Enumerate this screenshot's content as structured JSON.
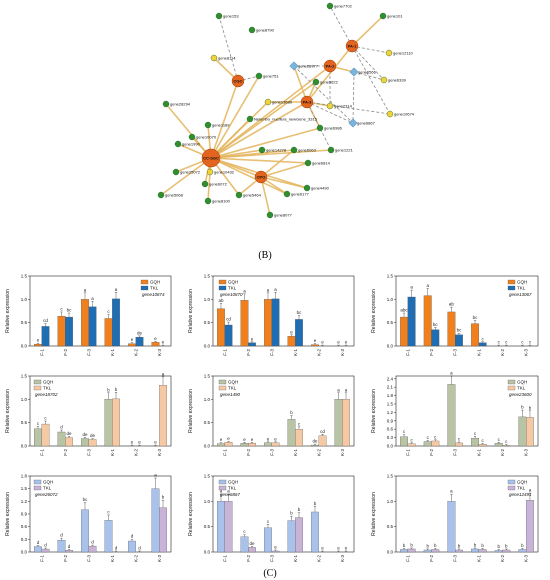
{
  "figure": {
    "panel_b_label": "(B)",
    "panel_c_label": "(C)"
  },
  "colors": {
    "edge_gold": "#e3b45a",
    "edge_dash": "#8a8a8a",
    "hub_fill": "#e2641f",
    "gene_green": "#2f8f2f",
    "gene_yellow": "#f0d23a",
    "gene_blue": "#78b4dc",
    "row1_gqh": "#f07f1e",
    "row1_tkl": "#1f6db3",
    "row2_gqh": "#b8c4a4",
    "row2_tkl": "#f6c9a5",
    "row3_gqh": "#a9c2ec",
    "row3_tkl": "#c9b4d8"
  },
  "network": {
    "hubs": [
      "PA-1",
      "PA-2",
      "PA-3",
      "CGC",
      "CC-SGC",
      "CPO"
    ],
    "genes": [
      "gene7702",
      "gene153",
      "gene101",
      "gene8790",
      "gene12110",
      "gene8114",
      "gene28977",
      "gene6339",
      "gene751",
      "gene9622",
      "gene6566",
      "gene13689",
      "gene28294",
      "gene2314",
      "gene10674",
      "gene1189",
      "Nelumbo_nucifera_newGene_3315",
      "gene6867",
      "gene10070",
      "gene6986",
      "gene1990",
      "gene6063",
      "gene1221",
      "gene14278",
      "gene25072",
      "gene6814",
      "gene10432",
      "gene6072",
      "gene5464",
      "gene4490",
      "gene5068",
      "gene8100",
      "gene6177",
      "gene8077"
    ]
  },
  "chart_data": [
    {
      "type": "bar",
      "gene": "gene10874",
      "ylabel": "Relative expression",
      "ylim": [
        0,
        1.5
      ],
      "yticks": [
        "0.0",
        "0.5",
        "1.0",
        "1.5"
      ],
      "categories": [
        "F-1",
        "F-2",
        "F-3",
        "K-1",
        "K-2",
        "K-3"
      ],
      "legend": [
        "GQH",
        "TKL"
      ],
      "series": [
        {
          "name": "GQH",
          "values": [
            0.04,
            0.64,
            1.0,
            0.59,
            0.05,
            0.08
          ],
          "sig": [
            "e",
            "c",
            "a",
            "c",
            "e",
            "e"
          ]
        },
        {
          "name": "TKL",
          "values": [
            0.42,
            0.62,
            0.84,
            1.01,
            0.19,
            0.0
          ],
          "sig": [
            "cd",
            "bc",
            "a",
            "a",
            "de",
            "e"
          ]
        }
      ]
    },
    {
      "type": "bar",
      "gene": "gene10870",
      "ylabel": "Relative expression",
      "ylim": [
        0,
        1.5
      ],
      "yticks": [
        "0.0",
        "0.5",
        "1.0",
        "1.5"
      ],
      "categories": [
        "F-1",
        "F-2",
        "F-3",
        "K-1",
        "K-2",
        "K-3"
      ],
      "legend": [
        "GQH",
        "TKL"
      ],
      "series": [
        {
          "name": "GQH",
          "values": [
            0.8,
            0.98,
            1.0,
            0.21,
            0.03,
            0.0
          ],
          "sig": [
            "ab",
            "a",
            "a",
            "e",
            "e",
            "e"
          ]
        },
        {
          "name": "TKL",
          "values": [
            0.45,
            0.07,
            1.01,
            0.57,
            0.0,
            0.0
          ],
          "sig": [
            "cd",
            "e",
            "a",
            "bc",
            "e",
            "e"
          ]
        }
      ]
    },
    {
      "type": "bar",
      "gene": "gene13067",
      "ylabel": "Relative expression",
      "ylim": [
        0,
        1.5
      ],
      "yticks": [
        "0.0",
        "0.5",
        "1.0",
        "1.5"
      ],
      "categories": [
        "F-1",
        "F-2",
        "F-3",
        "K-1",
        "K-2",
        "K-3"
      ],
      "legend": [
        "GQH",
        "TKL"
      ],
      "series": [
        {
          "name": "GQH",
          "values": [
            0.62,
            1.08,
            0.73,
            0.48,
            0.0,
            0.0
          ],
          "sig": [
            "abc",
            "a",
            "ab",
            "bc",
            "c",
            "c"
          ]
        },
        {
          "name": "TKL",
          "values": [
            1.05,
            0.35,
            0.24,
            0.07,
            0.0,
            0.0
          ],
          "sig": [
            "a",
            "bc",
            "bc",
            "c",
            "c",
            "c"
          ]
        }
      ]
    },
    {
      "type": "bar",
      "gene": "gene18702",
      "ylabel": "Relative expression",
      "ylim": [
        0,
        1.5
      ],
      "yticks": [
        "0.0",
        "0.5",
        "1.0",
        "1.5"
      ],
      "categories": [
        "F-1",
        "F-2",
        "F-3",
        "K-1",
        "K-2",
        "K-3"
      ],
      "legend": [
        "GQH",
        "TKL"
      ],
      "series": [
        {
          "name": "GQH",
          "values": [
            0.37,
            0.3,
            0.16,
            1.0,
            0.0,
            0.0
          ],
          "sig": [
            "c",
            "d",
            "de",
            "b",
            "e",
            "e"
          ]
        },
        {
          "name": "TKL",
          "values": [
            0.47,
            0.18,
            0.14,
            1.01,
            0.0,
            1.3
          ],
          "sig": [
            "c",
            "de",
            "de",
            "b",
            "e",
            "a"
          ]
        }
      ]
    },
    {
      "type": "bar",
      "gene": "gene1490",
      "ylabel": "Relative expression",
      "ylim": [
        0,
        1.5
      ],
      "yticks": [
        "0.0",
        "0.5",
        "1.0",
        "1.5"
      ],
      "categories": [
        "F-1",
        "F-2",
        "F-3",
        "K-1",
        "K-2",
        "K-3"
      ],
      "legend": [
        "GQH",
        "TKL"
      ],
      "series": [
        {
          "name": "GQH",
          "values": [
            0.05,
            0.06,
            0.07,
            0.57,
            0.02,
            1.0
          ],
          "sig": [
            "e",
            "e",
            "e",
            "b",
            "de",
            "a"
          ]
        },
        {
          "name": "TKL",
          "values": [
            0.08,
            0.06,
            0.07,
            0.36,
            0.22,
            1.0
          ],
          "sig": [
            "e",
            "e",
            "e",
            "c",
            "cd",
            "a"
          ]
        }
      ]
    },
    {
      "type": "bar",
      "gene": "gene23600",
      "ylabel": "Relative expression",
      "ylim": [
        0,
        2.5
      ],
      "yticks": [
        "0.0",
        "0.3",
        "0.6",
        "0.9",
        "1.2",
        "1.5",
        "1.8",
        "2.1",
        "2.4"
      ],
      "categories": [
        "F-1",
        "F-2",
        "F-3",
        "K-1",
        "K-2",
        "K-3"
      ],
      "legend": [
        "GQH",
        "TKL"
      ],
      "series": [
        {
          "name": "GQH",
          "values": [
            0.33,
            0.16,
            2.2,
            0.28,
            0.1,
            1.04
          ],
          "sig": [
            "c",
            "c",
            "a",
            "c",
            "c",
            "b"
          ]
        },
        {
          "name": "TKL",
          "values": [
            0.08,
            0.18,
            0.11,
            0.06,
            0.02,
            1.02
          ],
          "sig": [
            "c",
            "c",
            "c",
            "c",
            "c",
            "b"
          ]
        }
      ]
    },
    {
      "type": "bar",
      "gene": "gene26072",
      "ylabel": "Relative expression",
      "ylim": [
        0,
        1.8
      ],
      "yticks": [
        "0.0",
        "0.3",
        "0.6",
        "0.9",
        "1.2",
        "1.5",
        "1.8"
      ],
      "categories": [
        "F-1",
        "F-2",
        "F-3",
        "K-1",
        "K-2",
        "K-3"
      ],
      "legend": [
        "GQH",
        "TKL"
      ],
      "series": [
        {
          "name": "GQH",
          "values": [
            0.13,
            0.28,
            1.0,
            0.75,
            0.26,
            1.5
          ],
          "sig": [
            "d",
            "d",
            "bc",
            "c",
            "d",
            "a"
          ]
        },
        {
          "name": "TKL",
          "values": [
            0.07,
            0.04,
            0.14,
            0.0,
            0.0,
            1.05
          ],
          "sig": [
            "d",
            "d",
            "d",
            "d",
            "d",
            "b"
          ]
        }
      ]
    },
    {
      "type": "bar",
      "gene": "gene6867",
      "ylabel": "Relative expression",
      "ylim": [
        0,
        1.5
      ],
      "yticks": [
        "0.0",
        "0.5",
        "1.0",
        "1.5"
      ],
      "categories": [
        "F-1",
        "F-2",
        "F-3",
        "K-1",
        "K-2",
        "K-3"
      ],
      "legend": [
        "GQH",
        "TKL"
      ],
      "series": [
        {
          "name": "GQH",
          "values": [
            1.0,
            0.3,
            0.48,
            0.62,
            0.79,
            0.0
          ],
          "sig": [
            "a",
            "c",
            "c",
            "b",
            "b",
            "e"
          ]
        },
        {
          "name": "TKL",
          "values": [
            1.0,
            0.09,
            0.02,
            0.68,
            0.0,
            0.0
          ],
          "sig": [
            "a",
            "de",
            "e",
            "b",
            "e",
            "e"
          ]
        }
      ]
    },
    {
      "type": "bar",
      "gene": "gene12491",
      "ylabel": "Relative expression",
      "ylim": [
        0,
        1.5
      ],
      "yticks": [
        "0.0",
        "0.5",
        "1.0",
        "1.5"
      ],
      "categories": [
        "F-1",
        "F-2",
        "F-3",
        "K-1",
        "K-2",
        "K-3"
      ],
      "legend": [
        "GQH",
        "TKL"
      ],
      "series": [
        {
          "name": "GQH",
          "values": [
            0.05,
            0.04,
            1.0,
            0.06,
            0.03,
            0.05
          ],
          "sig": [
            "b",
            "b",
            "a",
            "b",
            "b",
            "b"
          ]
        },
        {
          "name": "TKL",
          "values": [
            0.06,
            0.05,
            0.04,
            0.05,
            0.04,
            1.02
          ],
          "sig": [
            "b",
            "b",
            "b",
            "b",
            "b",
            "a"
          ]
        }
      ]
    }
  ]
}
